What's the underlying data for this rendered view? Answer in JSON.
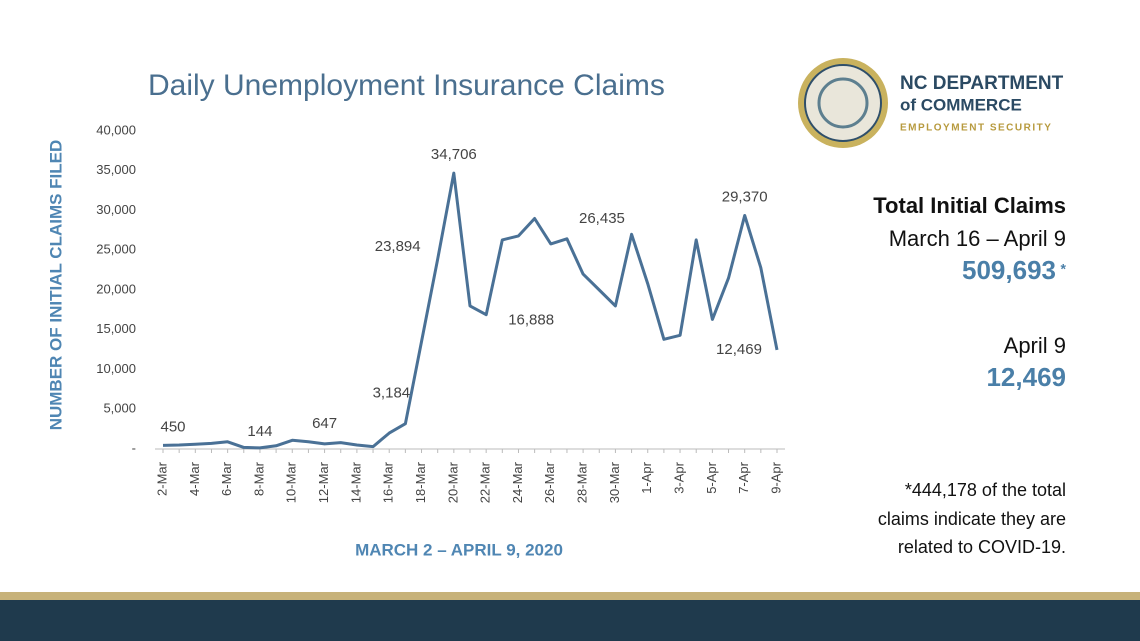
{
  "chart_data": {
    "type": "line",
    "title": "Daily Unemployment Insurance Claims",
    "y_label": "NUMBER OF INITIAL CLAIMS FILED",
    "x_label": "MARCH 2 – APRIL 9, 2020",
    "color": "#4a7196",
    "categories": [
      "2-Mar",
      null,
      "4-Mar",
      null,
      "6-Mar",
      null,
      "8-Mar",
      null,
      "10-Mar",
      null,
      "12-Mar",
      null,
      "14-Mar",
      null,
      "16-Mar",
      null,
      "18-Mar",
      null,
      "20-Mar",
      null,
      "22-Mar",
      null,
      "24-Mar",
      null,
      "26-Mar",
      null,
      "28-Mar",
      null,
      "30-Mar",
      null,
      "1-Apr",
      null,
      "3-Apr",
      null,
      "5-Apr",
      null,
      "7-Apr",
      null,
      "9-Apr"
    ],
    "values": [
      450,
      500,
      600,
      700,
      900,
      200,
      144,
      400,
      1100,
      900,
      647,
      800,
      500,
      300,
      2000,
      3184,
      13500,
      23894,
      34706,
      18000,
      16888,
      26300,
      26800,
      29000,
      25800,
      26435,
      22000,
      20000,
      18000,
      27000,
      20800,
      13800,
      14300,
      26300,
      16300,
      21500,
      29370,
      22800,
      12469
    ],
    "value_labels": [
      "450",
      null,
      null,
      null,
      null,
      null,
      "144",
      null,
      null,
      null,
      "647",
      null,
      null,
      null,
      null,
      "3,184",
      null,
      "23,894",
      "34,706",
      null,
      "16,888",
      null,
      null,
      null,
      null,
      "26,435",
      null,
      null,
      null,
      null,
      null,
      null,
      null,
      null,
      null,
      null,
      "29,370",
      null,
      "12,469"
    ],
    "ylim": [
      0,
      40000
    ],
    "yticks": [
      {
        "value": 0,
        "label": "-"
      },
      {
        "value": 5000,
        "label": "5,000"
      },
      {
        "value": 10000,
        "label": "10,000"
      },
      {
        "value": 15000,
        "label": "15,000"
      },
      {
        "value": 20000,
        "label": "20,000"
      },
      {
        "value": 25000,
        "label": "25,000"
      },
      {
        "value": 30000,
        "label": "30,000"
      },
      {
        "value": 35000,
        "label": "35,000"
      },
      {
        "value": 40000,
        "label": "40,000"
      }
    ]
  },
  "logo": {
    "line1": "NC DEPARTMENT",
    "line2": "of COMMERCE",
    "line3": "EMPLOYMENT SECURITY"
  },
  "sidebar": {
    "heading": "Total Initial Claims",
    "period": "March 16 – April 9",
    "total": "509,693",
    "total_mark": "*",
    "day": "April 9",
    "day_total": "12,469",
    "footnote": [
      "*444,178 of the total",
      "claims indicate they are",
      "related to COVID-19."
    ]
  }
}
